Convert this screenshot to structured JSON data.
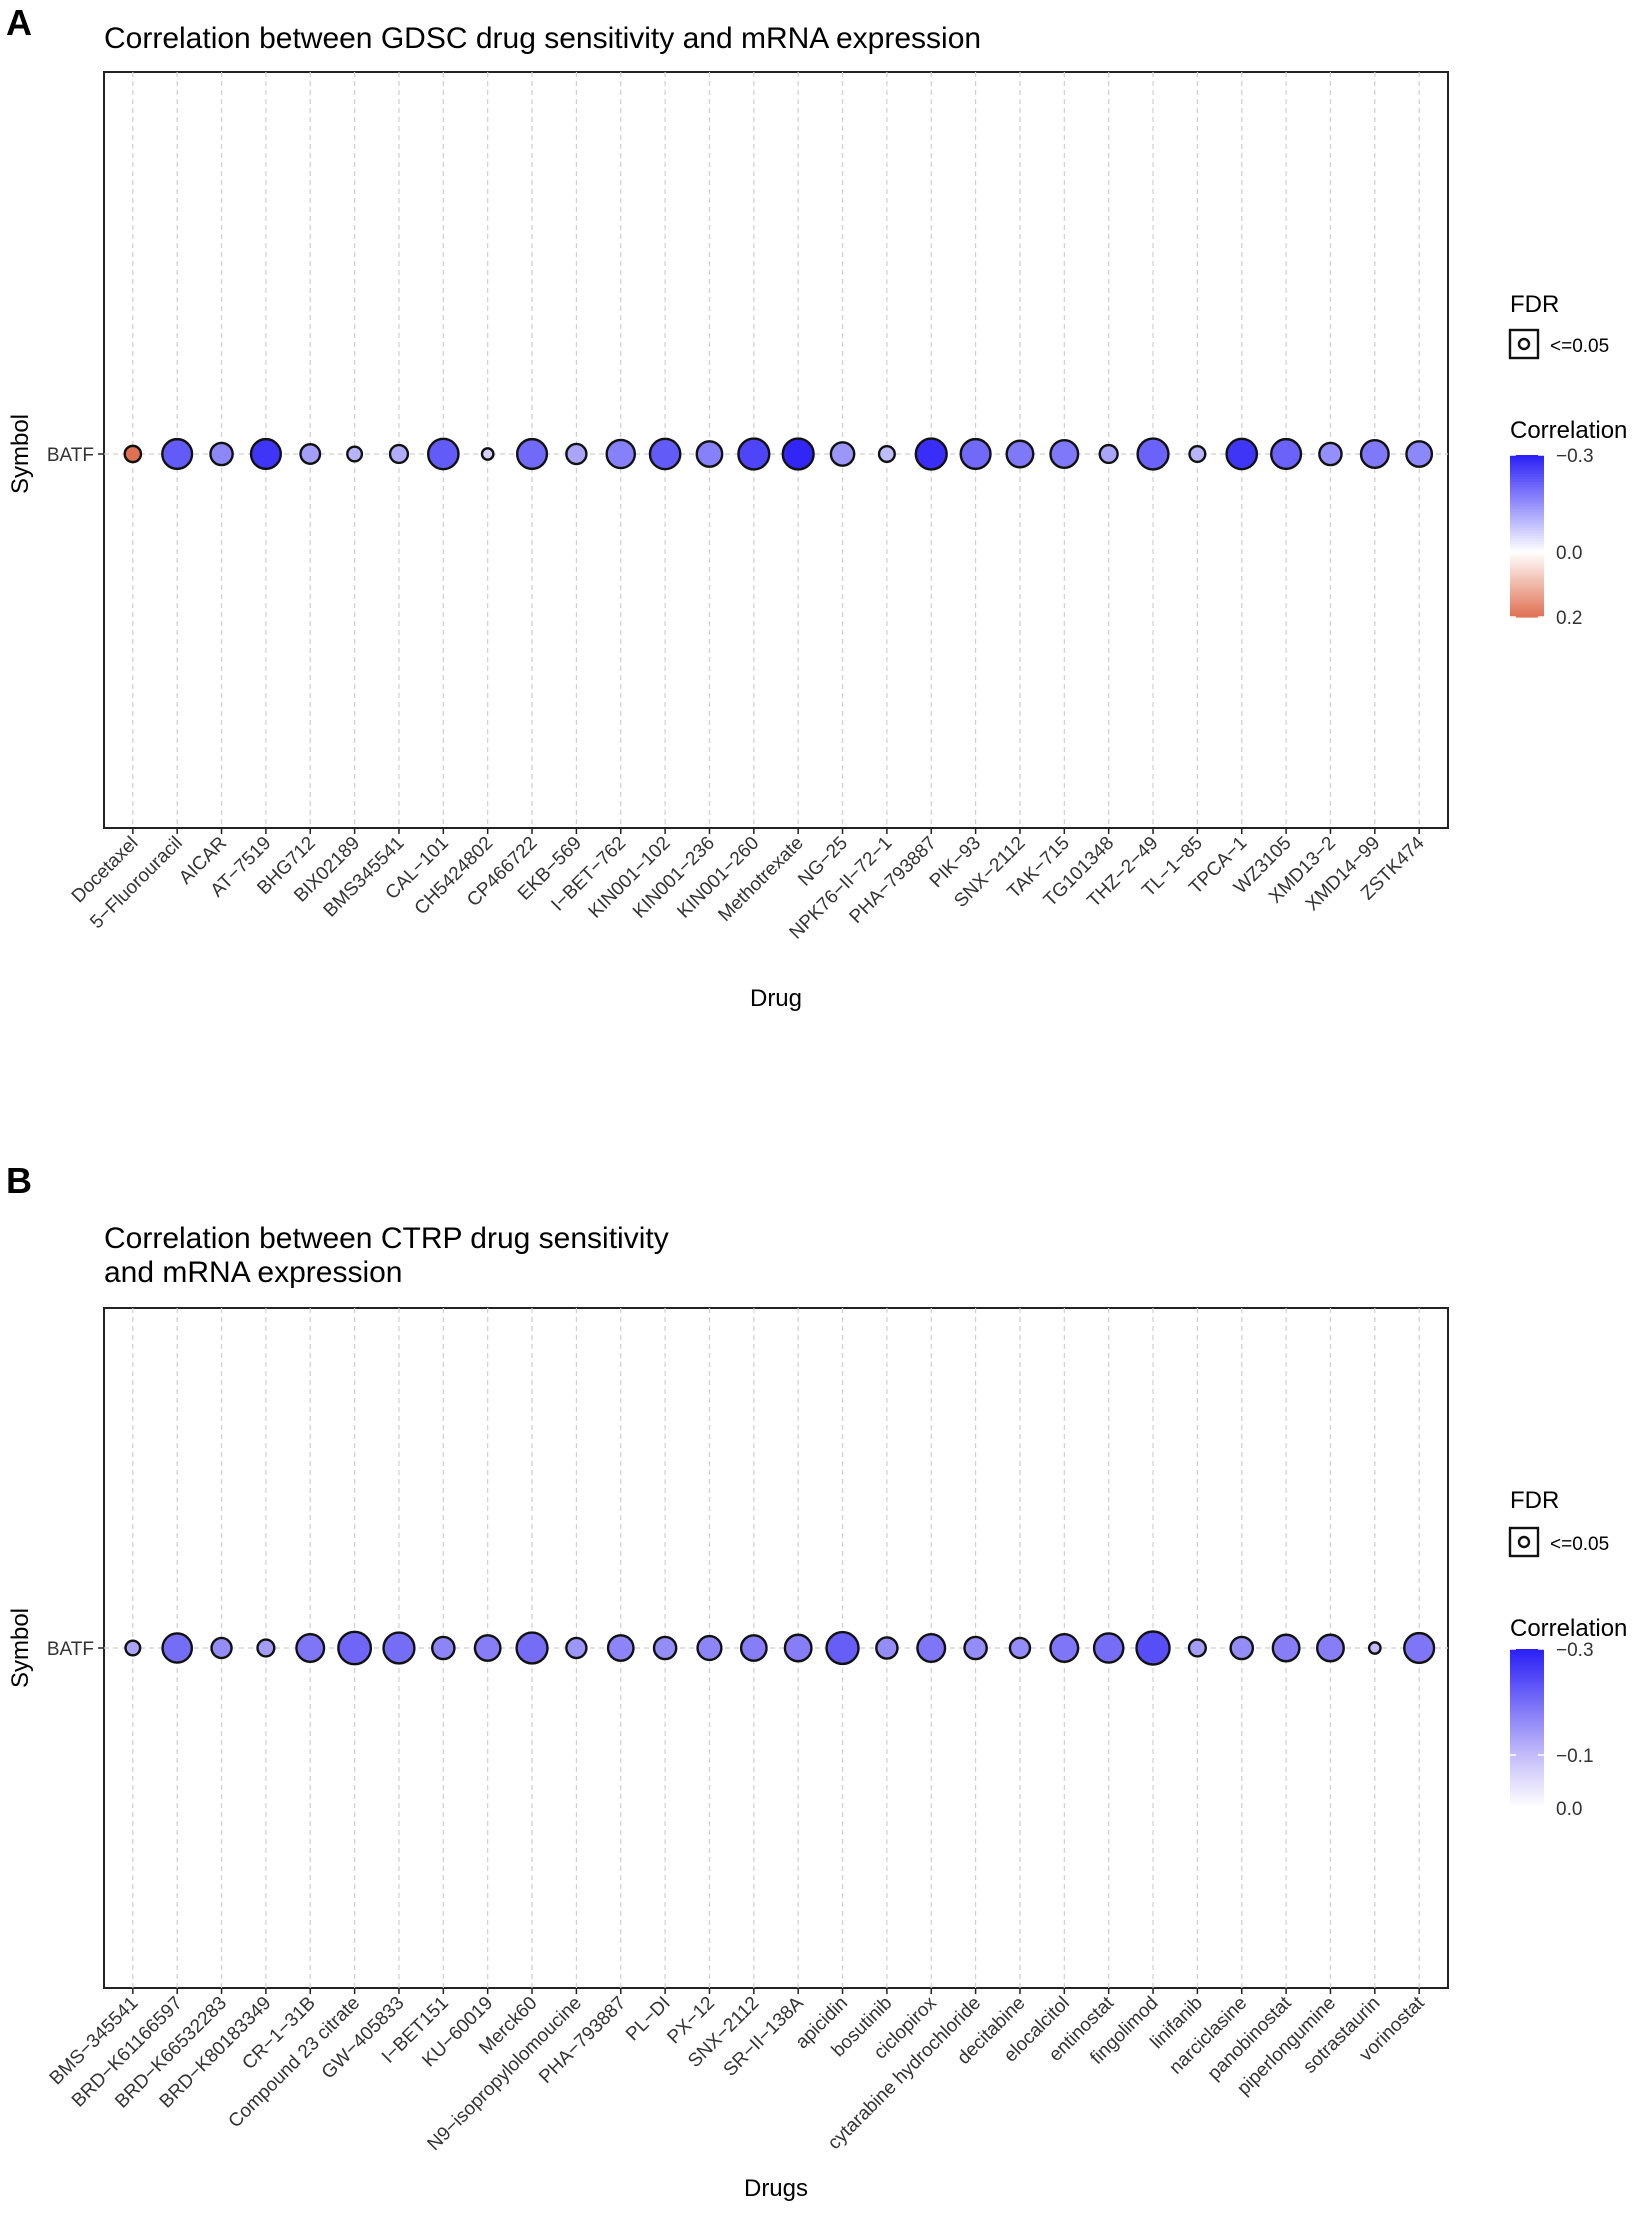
{
  "panels": [
    {
      "letter": "A",
      "title_lines": [
        "Correlation between GDSC drug sensitivity and mRNA expression"
      ]
    },
    {
      "letter": "B",
      "title_lines": [
        "Correlation between CTRP drug sensitivity",
        "and mRNA expression"
      ]
    }
  ],
  "chart_data": [
    {
      "type": "scatter",
      "title": "Correlation between GDSC drug sensitivity and mRNA expression",
      "xlabel": "Drug",
      "ylabel": "Symbol",
      "y_categories": [
        "BATF"
      ],
      "x_categories": [
        "Docetaxel",
        "5-Fluorouracil",
        "AICAR",
        "AT-7519",
        "BHG712",
        "BIX02189",
        "BMS345541",
        "CAL-101",
        "CH5424802",
        "CP466722",
        "EKB-569",
        "I-BET-762",
        "KIN001-102",
        "KIN001-236",
        "KIN001-260",
        "Methotrexate",
        "NG-25",
        "NPK76-II-72-1",
        "PHA-793887",
        "PIK-93",
        "SNX-2112",
        "TAK-715",
        "TG101348",
        "THZ-2-49",
        "TL-1-85",
        "TPCA-1",
        "WZ3105",
        "XMD13-2",
        "XMD14-99",
        "ZSTK474"
      ],
      "x_tick_labels": [
        "Docetaxel",
        "5−Fluorouracil",
        "AICAR",
        "AT−7519",
        "BHG712",
        "BIX02189",
        "BMS345541",
        "CAL−101",
        "CH5424802",
        "CP466722",
        "EKB−569",
        "I−BET−762",
        "KIN001−102",
        "KIN001−236",
        "KIN001−260",
        "Methotrexate",
        "NG−25",
        "NPK76−II−72−1",
        "PHA−793887",
        "PIK−93",
        "SNX−2112",
        "TAK−715",
        "TG101348",
        "THZ−2−49",
        "TL−1−85",
        "TPCA−1",
        "WZ3105",
        "XMD13−2",
        "XMD14−99",
        "ZSTK474"
      ],
      "correlation": [
        0.2,
        -0.22,
        -0.16,
        -0.27,
        -0.13,
        -0.1,
        -0.11,
        -0.22,
        -0.06,
        -0.2,
        -0.12,
        -0.17,
        -0.22,
        -0.17,
        -0.25,
        -0.29,
        -0.14,
        -0.09,
        -0.28,
        -0.2,
        -0.18,
        -0.18,
        -0.12,
        -0.21,
        -0.1,
        -0.27,
        -0.21,
        -0.15,
        -0.18,
        -0.16
      ],
      "fdr_log10": [
        1.9,
        4.4,
        3.0,
        4.4,
        2.5,
        1.6,
        2.2,
        4.5,
        1.0,
        4.4,
        2.6,
        4.1,
        4.5,
        3.6,
        4.6,
        4.6,
        3.2,
        1.8,
        4.6,
        4.4,
        3.8,
        4.0,
        2.2,
        4.6,
        1.8,
        4.5,
        4.4,
        3.0,
        4.0,
        3.6
      ],
      "color_scale": {
        "low": -0.3,
        "mid": 0.0,
        "high": 0.2,
        "low_color": "#2a1ff6",
        "mid_color": "#ffffff",
        "high_color": "#e07052"
      },
      "legend": {
        "fdr_title": "FDR",
        "fdr_entry": "<=0.05",
        "color_title": "Correlation",
        "color_ticks": [
          {
            "value": -0.3,
            "label": "−0.3"
          },
          {
            "value": 0.0,
            "label": "0.0"
          },
          {
            "value": 0.2,
            "label": "0.2"
          }
        ]
      },
      "grid": true,
      "legend_position": "right"
    },
    {
      "type": "scatter",
      "title": "Correlation between CTRP drug sensitivity and mRNA expression",
      "xlabel": "Drugs",
      "ylabel": "Symbol",
      "y_categories": [
        "BATF"
      ],
      "x_categories": [
        "BMS-345541",
        "BRD-K61166597",
        "BRD-K66532283",
        "BRD-K80183349",
        "CR-1-31B",
        "Compound 23 citrate",
        "GW-405833",
        "I-BET151",
        "KU-60019",
        "Merck60",
        "N9-isopropylolomoucine",
        "PHA-793887",
        "PL-DI",
        "PX-12",
        "SNX-2112",
        "SR-II-138A",
        "apicidin",
        "bosutinib",
        "ciclopirox",
        "cytarabine hydrochloride",
        "decitabine",
        "elocalcitol",
        "entinostat",
        "fingolimod",
        "linifanib",
        "narciclasine",
        "panobinostat",
        "piperlongumine",
        "sotrastaurin",
        "vorinostat"
      ],
      "x_tick_labels": [
        "BMS−345541",
        "BRD−K61166597",
        "BRD−K66532283",
        "BRD−K80183349",
        "CR−1−31B",
        "Compound 23 citrate",
        "GW−405833",
        "I−BET151",
        "KU−60019",
        "Merck60",
        "N9−isopropylolomoucine",
        "PHA−793887",
        "PL−DI",
        "PX−12",
        "SNX−2112",
        "SR−II−138A",
        "apicidin",
        "bosutinib",
        "ciclopirox",
        "cytarabine hydrochloride",
        "decitabine",
        "elocalcitol",
        "entinostat",
        "fingolimod",
        "linifanib",
        "narciclasine",
        "panobinostat",
        "piperlongumine",
        "sotrastaurin",
        "vorinostat"
      ],
      "correlation": [
        -0.13,
        -0.2,
        -0.16,
        -0.14,
        -0.19,
        -0.21,
        -0.2,
        -0.17,
        -0.18,
        -0.2,
        -0.15,
        -0.17,
        -0.16,
        -0.17,
        -0.18,
        -0.18,
        -0.22,
        -0.16,
        -0.19,
        -0.16,
        -0.16,
        -0.19,
        -0.2,
        -0.24,
        -0.14,
        -0.16,
        -0.18,
        -0.18,
        -0.1,
        -0.19
      ],
      "fdr_log10": [
        1.6,
        4.3,
        2.6,
        2.0,
        4.0,
        4.9,
        4.6,
        3.0,
        3.6,
        4.6,
        2.6,
        3.6,
        3.0,
        3.3,
        3.6,
        3.8,
        4.8,
        2.8,
        4.0,
        3.0,
        2.6,
        4.0,
        4.3,
        5.0,
        2.0,
        3.0,
        3.8,
        3.8,
        1.0,
        4.4
      ],
      "color_scale": {
        "low": -0.3,
        "mid": -0.1,
        "high": 0.0,
        "low_color": "#2a1ff6",
        "mid_color": "#c3bcf8",
        "high_color": "#ffffff"
      },
      "legend": {
        "fdr_title": "FDR",
        "fdr_entry": "<=0.05",
        "color_title": "Correlation",
        "color_ticks": [
          {
            "value": -0.3,
            "label": "−0.3"
          },
          {
            "value": -0.1,
            "label": "−0.1"
          },
          {
            "value": 0.0,
            "label": "0.0"
          }
        ]
      },
      "grid": true,
      "legend_position": "right"
    }
  ]
}
